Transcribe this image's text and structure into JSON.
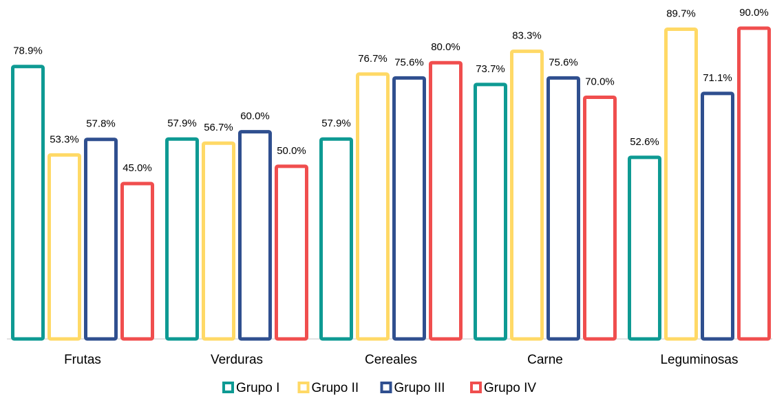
{
  "chart_data": {
    "type": "bar",
    "categories": [
      "Frutas",
      "Verduras",
      "Cereales",
      "Carne",
      "Leguminosas"
    ],
    "series": [
      {
        "name": "Grupo I",
        "color": "#0e9a93",
        "values": [
          78.9,
          57.9,
          57.9,
          73.7,
          52.6
        ],
        "value_labels": [
          "78.9%",
          "57.9%",
          "57.9%",
          "73.7%",
          "52.6%"
        ]
      },
      {
        "name": "Grupo II",
        "color": "#ffd966",
        "values": [
          53.3,
          56.7,
          76.7,
          83.3,
          89.7
        ],
        "value_labels": [
          "53.3%",
          "56.7%",
          "76.7%",
          "83.3%",
          "89.7%"
        ]
      },
      {
        "name": "Grupo III",
        "color": "#2f4f8f",
        "values": [
          57.8,
          60.0,
          75.6,
          75.6,
          71.1
        ],
        "value_labels": [
          "57.8%",
          "60.0%",
          "75.6%",
          "75.6%",
          "71.1%"
        ]
      },
      {
        "name": "Grupo IV",
        "color": "#f04e4e",
        "values": [
          45.0,
          50.0,
          80.0,
          70.0,
          90.0
        ],
        "value_labels": [
          "45.0%",
          "50.0%",
          "80.0%",
          "70.0%",
          "90.0%"
        ]
      }
    ],
    "ylim": [
      0,
      90
    ],
    "legend": "bottom"
  }
}
